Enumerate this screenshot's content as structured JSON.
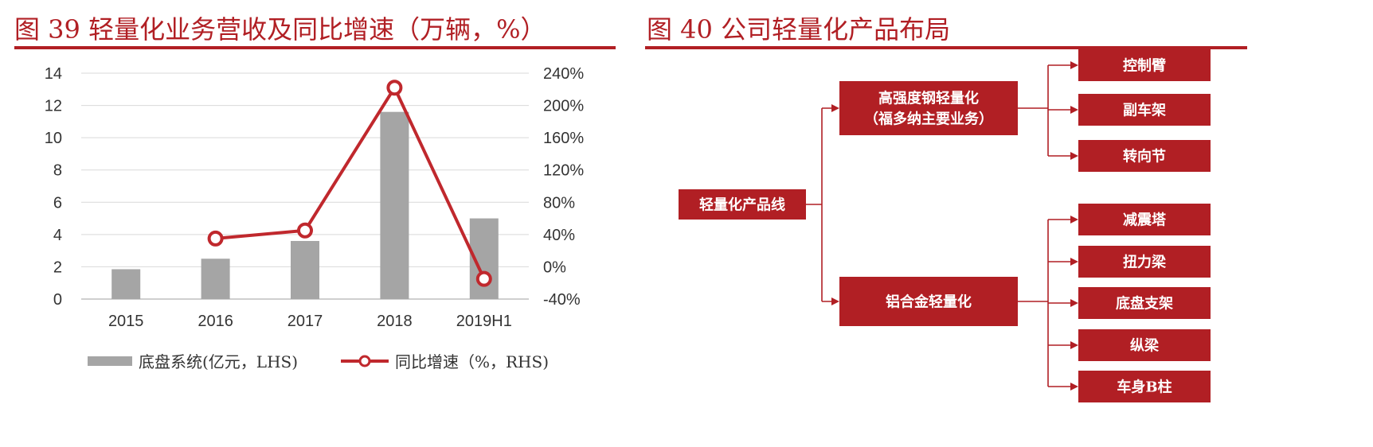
{
  "left": {
    "title": "图 39 轻量化业务营收及同比增速（万辆，%）"
  },
  "right": {
    "title": "图 40 公司轻量化产品布局",
    "root": "轻量化产品线",
    "branches": [
      {
        "label_lines": [
          "高强度钢轻量化",
          "（福多纳主要业务）"
        ],
        "children": [
          "控制臂",
          "副车架",
          "转向节"
        ]
      },
      {
        "label_lines": [
          "铝合金轻量化"
        ],
        "children": [
          "减震塔",
          "扭力梁",
          "底盘支架",
          "纵梁",
          "车身B柱"
        ]
      }
    ]
  },
  "colors": {
    "accent": "#b11f24",
    "bar": "#a5a5a5",
    "line": "#c0282d",
    "grid": "#d9d9d9"
  },
  "chart_data": {
    "type": "bar",
    "categories": [
      "2015",
      "2016",
      "2017",
      "2018",
      "2019H1"
    ],
    "series": [
      {
        "name": "底盘系统(亿元，LHS)",
        "type": "bar",
        "axis": "left",
        "values": [
          1.85,
          2.5,
          3.6,
          11.6,
          5.0
        ]
      },
      {
        "name": "同比增速（%，RHS)",
        "type": "line",
        "axis": "right",
        "values": [
          null,
          35,
          45,
          222,
          -15
        ]
      }
    ],
    "y_left": {
      "ticks": [
        "0",
        "2",
        "4",
        "6",
        "8",
        "10",
        "12",
        "14"
      ],
      "range": [
        0,
        14
      ]
    },
    "y_right": {
      "ticks": [
        "-40%",
        "0%",
        "40%",
        "80%",
        "120%",
        "160%",
        "200%",
        "240%"
      ],
      "range": [
        -40,
        240
      ]
    },
    "grid": true,
    "legend_position": "bottom"
  }
}
